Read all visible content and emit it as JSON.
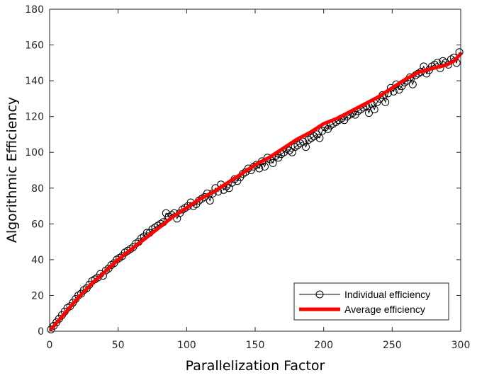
{
  "chart_data": {
    "type": "line",
    "xlabel": "Parallelization Factor",
    "ylabel": "Algorithmic Efficiency",
    "xlim": [
      0,
      300
    ],
    "ylim": [
      0,
      180
    ],
    "xticks": [
      0,
      50,
      100,
      150,
      200,
      250,
      300
    ],
    "yticks": [
      0,
      20,
      40,
      60,
      80,
      100,
      120,
      140,
      160,
      180
    ],
    "grid": false,
    "legend_position": "bottom-right",
    "series": [
      {
        "name": "Individual efficiency",
        "style": "line-with-open-circles",
        "color": "#000000",
        "x": [
          1,
          3,
          5,
          7,
          9,
          11,
          13,
          15,
          17,
          19,
          21,
          23,
          25,
          27,
          29,
          31,
          33,
          35,
          37,
          39,
          41,
          43,
          45,
          47,
          49,
          51,
          53,
          55,
          57,
          59,
          61,
          63,
          65,
          67,
          69,
          71,
          73,
          75,
          77,
          79,
          81,
          83,
          85,
          87,
          89,
          91,
          93,
          95,
          97,
          99,
          101,
          103,
          105,
          107,
          109,
          111,
          113,
          115,
          117,
          119,
          121,
          123,
          125,
          127,
          129,
          131,
          133,
          135,
          137,
          139,
          141,
          143,
          145,
          147,
          149,
          151,
          153,
          155,
          157,
          159,
          161,
          163,
          165,
          167,
          169,
          171,
          173,
          175,
          177,
          179,
          181,
          183,
          185,
          187,
          189,
          191,
          193,
          195,
          197,
          199,
          201,
          203,
          205,
          207,
          209,
          211,
          213,
          215,
          217,
          219,
          221,
          223,
          225,
          227,
          229,
          231,
          233,
          235,
          237,
          239,
          241,
          243,
          245,
          247,
          249,
          251,
          253,
          255,
          257,
          259,
          261,
          263,
          265,
          267,
          269,
          271,
          273,
          275,
          277,
          279,
          281,
          283,
          285,
          287,
          289,
          291,
          293,
          295,
          297,
          299
        ],
        "y": [
          1,
          3,
          5,
          7,
          9,
          11,
          13,
          14,
          16,
          18,
          20,
          21,
          23,
          24,
          26,
          28,
          29,
          30,
          32,
          31,
          34,
          35,
          37,
          38,
          40,
          41,
          42,
          44,
          45,
          46,
          47,
          49,
          50,
          52,
          53,
          55,
          55,
          57,
          58,
          59,
          60,
          61,
          66,
          64,
          65,
          66,
          63,
          66,
          68,
          69,
          70,
          72,
          70,
          71,
          73,
          74,
          75,
          77,
          73,
          77,
          80,
          78,
          82,
          79,
          81,
          80,
          83,
          85,
          84,
          86,
          88,
          89,
          91,
          90,
          92,
          93,
          91,
          95,
          92,
          97,
          96,
          94,
          98,
          97,
          99,
          100,
          102,
          101,
          100,
          103,
          104,
          105,
          106,
          103,
          107,
          108,
          109,
          110,
          108,
          112,
          114,
          113,
          115,
          116,
          117,
          118,
          119,
          118,
          120,
          121,
          122,
          121,
          123,
          124,
          125,
          126,
          122,
          127,
          124,
          128,
          130,
          132,
          128,
          133,
          136,
          134,
          138,
          135,
          137,
          139,
          140,
          142,
          138,
          143,
          144,
          145,
          148,
          144,
          146,
          148,
          149,
          150,
          147,
          151,
          150,
          149,
          152,
          153,
          150,
          156
        ]
      },
      {
        "name": "Average efficiency",
        "style": "thick-line",
        "color": "#ff0000",
        "x": [
          1,
          10,
          20,
          30,
          40,
          50,
          60,
          70,
          80,
          90,
          100,
          110,
          120,
          130,
          140,
          150,
          160,
          170,
          180,
          190,
          200,
          210,
          220,
          230,
          240,
          250,
          260,
          270,
          280,
          290,
          295,
          300
        ],
        "y": [
          1,
          9,
          18,
          26,
          33,
          40,
          46,
          52,
          58,
          64,
          69,
          74,
          78,
          83,
          88,
          93,
          97,
          102,
          107,
          111,
          116,
          119,
          123,
          127,
          131,
          136,
          141,
          145,
          147,
          149,
          151,
          155
        ]
      }
    ]
  }
}
